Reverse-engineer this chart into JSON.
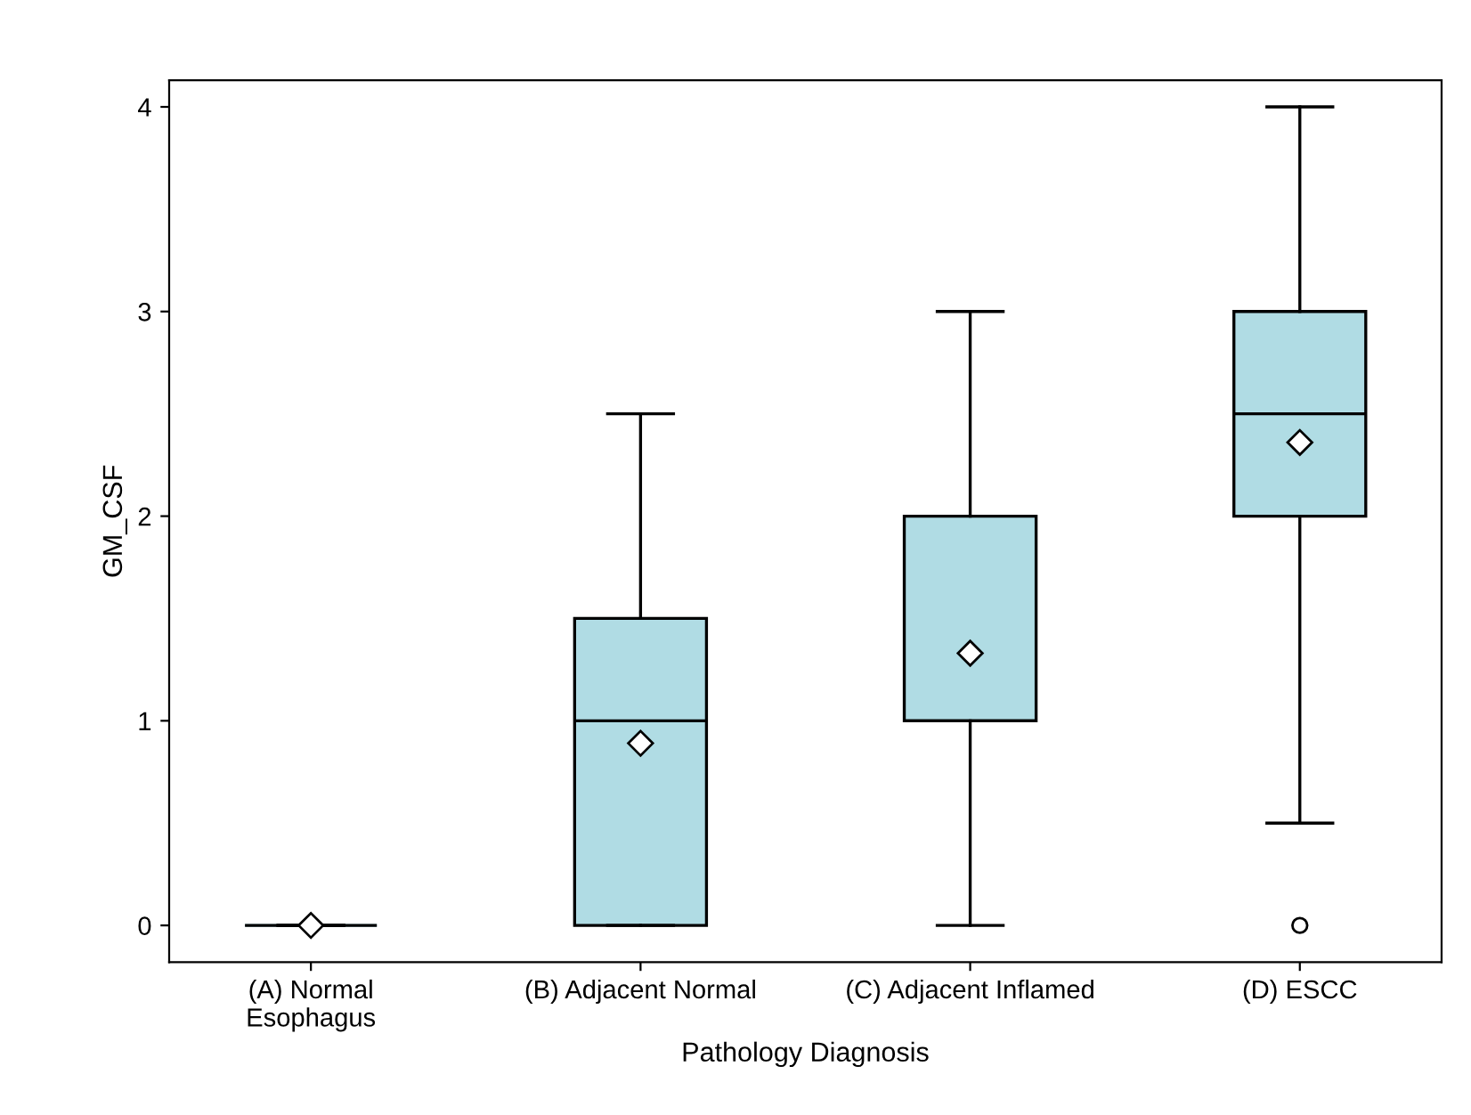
{
  "chart_data": {
    "type": "box",
    "xlabel": "Pathology Diagnosis",
    "ylabel": "GM_CSF",
    "categories": [
      "(A) Normal\nEsophagus",
      "(B) Adjacent Normal",
      "(C) Adjacent Inflamed",
      "(D) ESCC"
    ],
    "boxes": [
      {
        "low": 0,
        "q1": 0,
        "median": 0,
        "q3": 0,
        "high": 0,
        "mean": 0
      },
      {
        "low": 0,
        "q1": 0,
        "median": 1,
        "q3": 1.5,
        "high": 2.5,
        "mean": 0.89
      },
      {
        "low": 0,
        "q1": 1,
        "median": 1,
        "q3": 2,
        "high": 3,
        "mean": 1.33
      },
      {
        "low": 0.5,
        "q1": 2,
        "median": 2.5,
        "q3": 3,
        "high": 4,
        "mean": 2.36,
        "outliers": [
          0
        ]
      }
    ],
    "color": "#b0dce4",
    "ylim": [
      -0.18,
      4.13
    ],
    "yticks": [
      0,
      1,
      2,
      3,
      4
    ],
    "grid": false,
    "marker": "diamond"
  }
}
